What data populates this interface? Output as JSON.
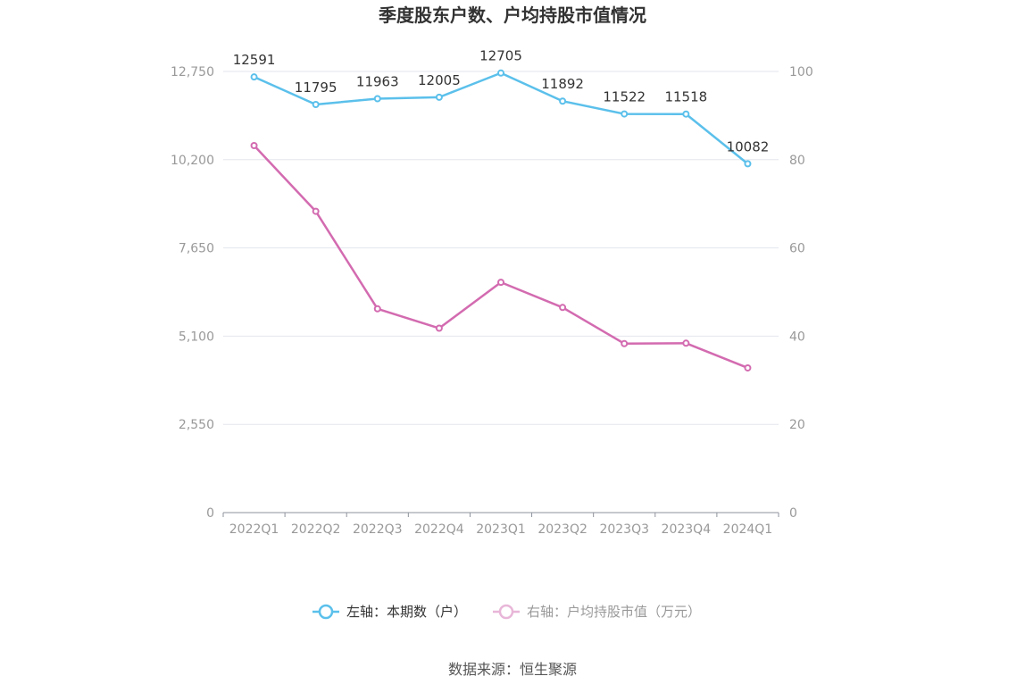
{
  "chart_data": {
    "type": "line",
    "title": "季度股东户数、户均持股市值情况",
    "categories": [
      "2022Q1",
      "2022Q2",
      "2022Q3",
      "2022Q4",
      "2023Q1",
      "2023Q2",
      "2023Q3",
      "2023Q4",
      "2024Q1"
    ],
    "left_axis": {
      "ticks": [
        "0",
        "2,550",
        "5,100",
        "7,650",
        "10,200",
        "12,750"
      ],
      "min": 0,
      "max": 12750
    },
    "right_axis": {
      "ticks": [
        "0",
        "20",
        "40",
        "60",
        "80",
        "100"
      ],
      "min": 0,
      "max": 100
    },
    "series": [
      {
        "name": "左轴：本期数（户）",
        "axis": "left",
        "color": "#5bc0eb",
        "values": [
          12591,
          11795,
          11963,
          12005,
          12705,
          11892,
          11522,
          11518,
          10082
        ],
        "labels": [
          "12591",
          "11795",
          "11963",
          "12005",
          "12705",
          "11892",
          "11522",
          "11518",
          "10082"
        ]
      },
      {
        "name": "右轴：户均持股市值（万元）",
        "axis": "right",
        "color": "#d36bb0",
        "values": [
          83.2,
          68.3,
          46.2,
          41.8,
          52.2,
          46.5,
          38.3,
          38.4,
          32.8
        ]
      }
    ],
    "grid": true,
    "legend_position": "bottom"
  },
  "source": "数据来源：恒生聚源"
}
